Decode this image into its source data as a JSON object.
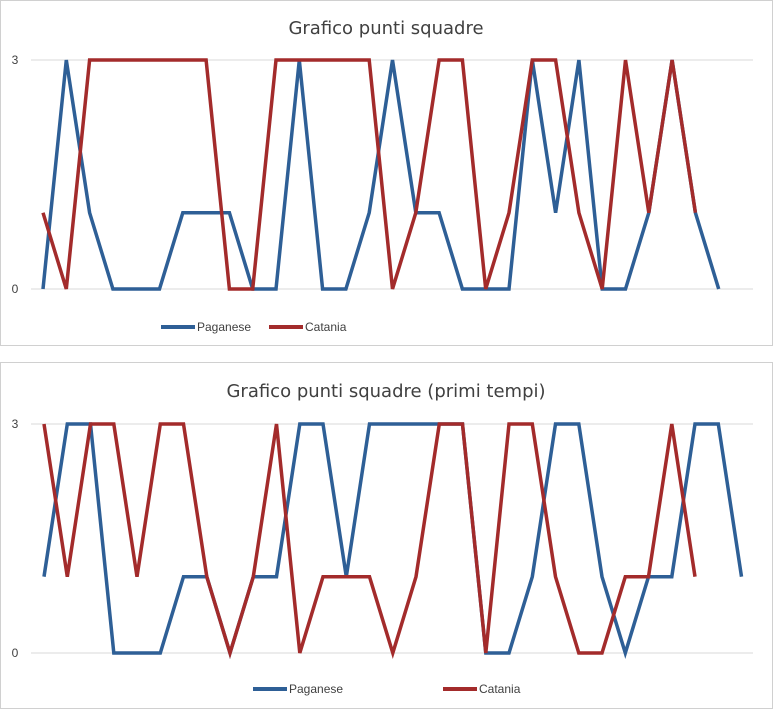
{
  "chart_data": [
    {
      "type": "line",
      "title": "Grafico punti squadre",
      "ylim": [
        0,
        3
      ],
      "yticks": [
        "0",
        "3"
      ],
      "grid": true,
      "legend_position": "bottom",
      "series": [
        {
          "name": "Paganese",
          "color": "#2e5f96",
          "values": [
            0,
            3,
            1,
            0,
            0,
            0,
            1,
            1,
            1,
            0,
            0,
            3,
            0,
            0,
            1,
            3,
            1,
            1,
            0,
            0,
            0,
            3,
            1,
            3,
            0,
            0,
            1,
            3,
            1,
            0
          ]
        },
        {
          "name": "Catania",
          "color": "#a32b2b",
          "values": [
            1,
            0,
            3,
            3,
            3,
            3,
            3,
            3,
            0,
            0,
            3,
            3,
            3,
            3,
            3,
            0,
            1,
            3,
            3,
            0,
            1,
            3,
            3,
            1,
            0,
            3,
            1,
            3,
            1
          ]
        }
      ]
    },
    {
      "type": "line",
      "title": "Grafico punti squadre (primi tempi)",
      "ylim": [
        0,
        3
      ],
      "yticks": [
        "0",
        "3"
      ],
      "grid": true,
      "legend_position": "bottom",
      "series": [
        {
          "name": "Paganese",
          "color": "#2e5f96",
          "values": [
            1,
            3,
            3,
            0,
            0,
            0,
            1,
            1,
            0,
            1,
            1,
            3,
            3,
            1,
            3,
            3,
            3,
            3,
            3,
            0,
            0,
            1,
            3,
            3,
            1,
            0,
            1,
            1,
            3,
            3,
            1
          ]
        },
        {
          "name": "Catania",
          "color": "#a32b2b",
          "values": [
            3,
            1,
            3,
            3,
            1,
            3,
            3,
            1,
            0,
            1,
            3,
            0,
            1,
            1,
            1,
            0,
            1,
            3,
            3,
            0,
            3,
            3,
            1,
            0,
            0,
            1,
            1,
            3,
            1
          ]
        }
      ]
    }
  ]
}
